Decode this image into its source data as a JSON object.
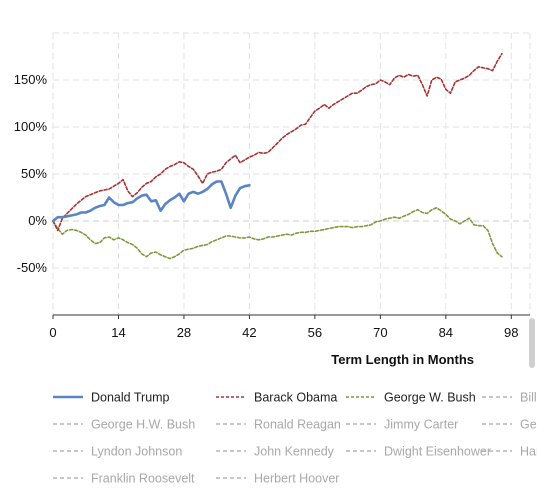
{
  "chart_data": {
    "type": "line",
    "xlabel": "Term Length in Months",
    "ylabel": "",
    "xlim": [
      0,
      102
    ],
    "ylim": [
      -100,
      200
    ],
    "x_ticks": [
      0,
      14,
      28,
      42,
      56,
      70,
      84,
      98
    ],
    "y_ticks": [
      -50,
      0,
      50,
      100,
      150
    ],
    "y_tick_labels": [
      "-50%",
      "0%",
      "50%",
      "100%",
      "150%"
    ],
    "grid": true,
    "legend_position": "bottom",
    "series": [
      {
        "name": "Donald Trump",
        "color": "#5b84c4",
        "style": "solid",
        "visible": true,
        "x": [
          0,
          1,
          2,
          3,
          4,
          5,
          6,
          7,
          8,
          9,
          10,
          11,
          12,
          13,
          14,
          15,
          16,
          17,
          18,
          19,
          20,
          21,
          22,
          23,
          24,
          25,
          26,
          27,
          28,
          29,
          30,
          31,
          32,
          33,
          34,
          35,
          36,
          37,
          38,
          39,
          40,
          41,
          42
        ],
        "y": [
          0,
          4,
          4,
          5,
          6,
          7,
          9,
          9,
          11,
          14,
          16,
          17,
          25,
          20,
          17,
          17,
          19,
          20,
          24,
          27,
          28,
          21,
          22,
          11,
          18,
          22,
          25,
          29,
          21,
          29,
          31,
          29,
          31,
          34,
          39,
          42,
          42,
          29,
          14,
          27,
          35,
          37,
          38
        ]
      },
      {
        "name": "Barack Obama",
        "color": "#a83232",
        "style": "dotted",
        "visible": true,
        "x": [
          0,
          1,
          2,
          3,
          4,
          5,
          6,
          7,
          8,
          9,
          10,
          11,
          12,
          13,
          14,
          15,
          16,
          17,
          18,
          19,
          20,
          21,
          22,
          23,
          24,
          25,
          26,
          27,
          28,
          29,
          30,
          31,
          32,
          33,
          34,
          35,
          36,
          37,
          38,
          39,
          40,
          41,
          42,
          43,
          44,
          45,
          46,
          47,
          48,
          49,
          50,
          51,
          52,
          53,
          54,
          55,
          56,
          57,
          58,
          59,
          60,
          61,
          62,
          63,
          64,
          65,
          66,
          67,
          68,
          69,
          70,
          71,
          72,
          73,
          74,
          75,
          76,
          77,
          78,
          79,
          80,
          81,
          82,
          83,
          84,
          85,
          86,
          87,
          88,
          89,
          90,
          91,
          92,
          93,
          94,
          95,
          96
        ],
        "y": [
          0,
          -10,
          3,
          8,
          13,
          18,
          22,
          26,
          28,
          30,
          32,
          33,
          34,
          37,
          40,
          44,
          32,
          26,
          30,
          36,
          40,
          42,
          47,
          50,
          55,
          58,
          60,
          63,
          62,
          58,
          55,
          48,
          40,
          50,
          52,
          53,
          55,
          62,
          66,
          70,
          62,
          65,
          68,
          70,
          73,
          72,
          73,
          78,
          83,
          88,
          92,
          95,
          98,
          102,
          103,
          110,
          117,
          120,
          124,
          120,
          124,
          127,
          130,
          133,
          136,
          136,
          139,
          143,
          145,
          146,
          150,
          148,
          145,
          152,
          155,
          153,
          156,
          154,
          155,
          145,
          133,
          150,
          153,
          151,
          140,
          136,
          148,
          150,
          152,
          155,
          160,
          164,
          163,
          162,
          160,
          170,
          178
        ]
      },
      {
        "name": "George W. Bush",
        "color": "#7d9a3b",
        "style": "dotted",
        "visible": true,
        "x": [
          0,
          1,
          2,
          3,
          4,
          5,
          6,
          7,
          8,
          9,
          10,
          11,
          12,
          13,
          14,
          15,
          16,
          17,
          18,
          19,
          20,
          21,
          22,
          23,
          24,
          25,
          26,
          27,
          28,
          29,
          30,
          31,
          32,
          33,
          34,
          35,
          36,
          37,
          38,
          39,
          40,
          41,
          42,
          43,
          44,
          45,
          46,
          47,
          48,
          49,
          50,
          51,
          52,
          53,
          54,
          55,
          56,
          57,
          58,
          59,
          60,
          61,
          62,
          63,
          64,
          65,
          66,
          67,
          68,
          69,
          70,
          71,
          72,
          73,
          74,
          75,
          76,
          77,
          78,
          79,
          80,
          81,
          82,
          83,
          84,
          85,
          86,
          87,
          88,
          89,
          90,
          91,
          92,
          93,
          94,
          95,
          96
        ],
        "y": [
          0,
          -8,
          -14,
          -10,
          -9,
          -10,
          -12,
          -15,
          -20,
          -24,
          -23,
          -18,
          -17,
          -20,
          -18,
          -20,
          -23,
          -25,
          -29,
          -35,
          -38,
          -34,
          -33,
          -36,
          -38,
          -40,
          -38,
          -35,
          -31,
          -30,
          -29,
          -27,
          -26,
          -25,
          -22,
          -20,
          -18,
          -16,
          -16,
          -17,
          -18,
          -18,
          -17,
          -19,
          -20,
          -19,
          -17,
          -17,
          -16,
          -15,
          -14,
          -15,
          -13,
          -12,
          -12,
          -11,
          -11,
          -10,
          -9,
          -8,
          -7,
          -6,
          -6,
          -6,
          -7,
          -6,
          -6,
          -5,
          -4,
          -1,
          0,
          2,
          3,
          4,
          3,
          5,
          7,
          10,
          12,
          9,
          8,
          12,
          14,
          11,
          7,
          2,
          0,
          -3,
          0,
          3,
          -4,
          -5,
          -5,
          -10,
          -24,
          -34,
          -38
        ]
      },
      {
        "name": "Bill Clinton",
        "color": "#aaaaaa",
        "style": "dashed",
        "visible": false
      },
      {
        "name": "George H.W. Bush",
        "color": "#aaaaaa",
        "style": "dashed",
        "visible": false
      },
      {
        "name": "Ronald Reagan",
        "color": "#aaaaaa",
        "style": "dashed",
        "visible": false
      },
      {
        "name": "Jimmy Carter",
        "color": "#aaaaaa",
        "style": "dashed",
        "visible": false
      },
      {
        "name": "Gerald Ford",
        "color": "#aaaaaa",
        "style": "dashed",
        "visible": false
      },
      {
        "name": "Lyndon Johnson",
        "color": "#aaaaaa",
        "style": "dashed",
        "visible": false
      },
      {
        "name": "John Kennedy",
        "color": "#aaaaaa",
        "style": "dashed",
        "visible": false
      },
      {
        "name": "Dwight Eisenhower",
        "color": "#aaaaaa",
        "style": "dashed",
        "visible": false
      },
      {
        "name": "Harry Truman",
        "color": "#aaaaaa",
        "style": "dashed",
        "visible": false
      },
      {
        "name": "Franklin Roosevelt",
        "color": "#aaaaaa",
        "style": "dashed",
        "visible": false
      },
      {
        "name": "Herbert Hoover",
        "color": "#aaaaaa",
        "style": "dashed",
        "visible": false
      }
    ]
  },
  "legend": {
    "rows": [
      [
        "Donald Trump",
        "Barack Obama",
        "George W. Bush",
        "Bill Clinton"
      ],
      [
        "George H.W. Bush",
        "Ronald Reagan",
        "Jimmy Carter",
        "Gerald Ford"
      ],
      [
        "Lyndon Johnson",
        "John Kennedy",
        "Dwight Eisenhower",
        "Harry Truman"
      ],
      [
        "Franklin Roosevelt",
        "Herbert Hoover"
      ]
    ]
  }
}
